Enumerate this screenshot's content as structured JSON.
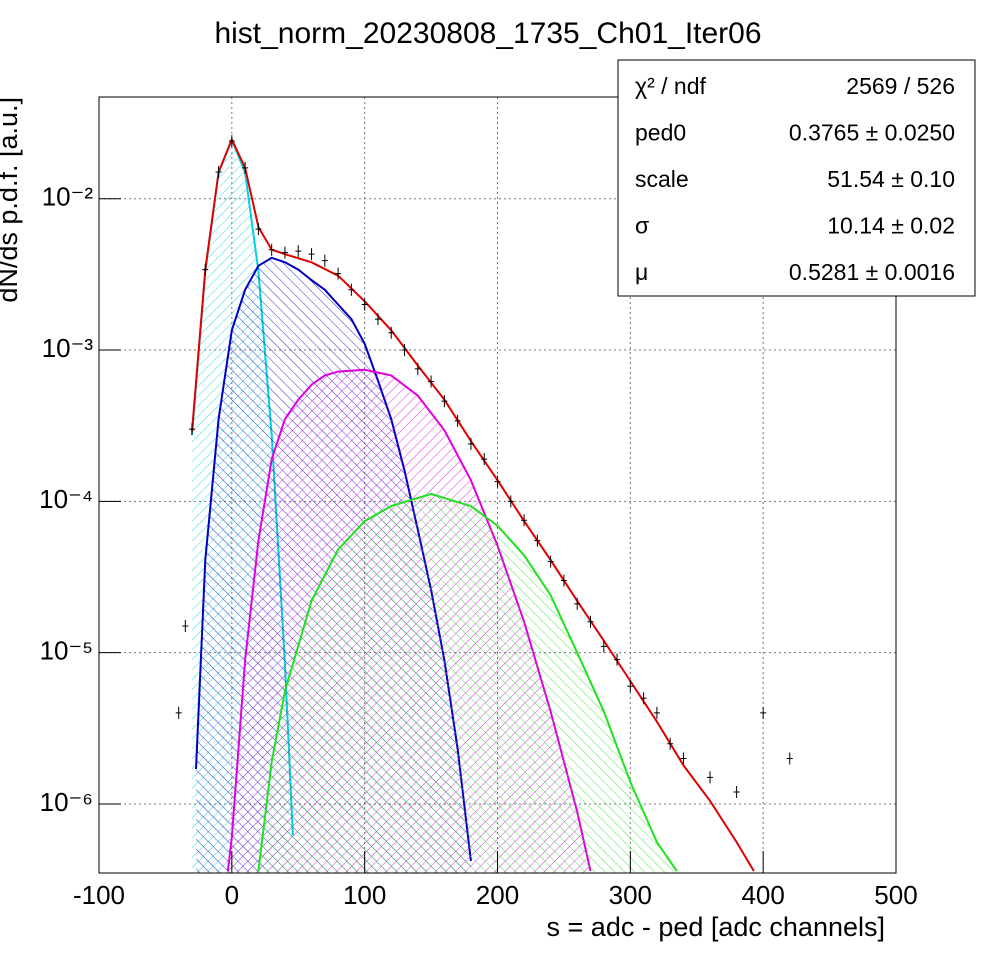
{
  "chart_data": {
    "type": "line",
    "title": "hist_norm_20230808_1735_Ch01_Iter06",
    "x_label": "s = adc - ped [adc channels]",
    "y_label": "dN/ds p.d.f. [a.u.]",
    "xlim": [
      -100,
      500
    ],
    "xticks": [
      -100,
      0,
      100,
      200,
      300,
      400,
      500
    ],
    "ylim": [
      3.5e-07,
      0.047
    ],
    "yticks": [
      {
        "value": 1e-06,
        "label": "10⁻⁶"
      },
      {
        "value": 1e-05,
        "label": "10⁻⁵"
      },
      {
        "value": 0.0001,
        "label": "10⁻⁴"
      },
      {
        "value": 0.001,
        "label": "10⁻³"
      },
      {
        "value": 0.01,
        "label": "10⁻²"
      }
    ],
    "log_y": true,
    "grid": true,
    "series": [
      {
        "color": "#000000",
        "marker": "cross",
        "x": [
          -40,
          -35,
          -30,
          -20,
          -10,
          0,
          10,
          20,
          30,
          40,
          50,
          60,
          70,
          80,
          90,
          100,
          110,
          120,
          130,
          140,
          150,
          160,
          170,
          180,
          190,
          200,
          210,
          220,
          230,
          240,
          250,
          260,
          270,
          280,
          290,
          300,
          310,
          320,
          330,
          340,
          360,
          380,
          400,
          420
        ],
        "values": [
          4e-06,
          1.5e-05,
          0.0003,
          0.0034,
          0.015,
          0.024,
          0.016,
          0.0063,
          0.0046,
          0.0044,
          0.0045,
          0.0043,
          0.0039,
          0.0032,
          0.0025,
          0.002,
          0.0016,
          0.0013,
          0.001,
          0.00075,
          0.00062,
          0.00046,
          0.00034,
          0.00024,
          0.00019,
          0.000135,
          0.0001,
          7.5e-05,
          5.5e-05,
          4e-05,
          3e-05,
          2.1e-05,
          1.6e-05,
          1.1e-05,
          9e-06,
          6e-06,
          5e-06,
          4e-06,
          2.5e-06,
          2e-06,
          1.5e-06,
          1.2e-06,
          4e-06,
          2e-06
        ]
      },
      {
        "color": "#00d0e0",
        "hatch": true,
        "x": [
          -30,
          -20,
          -10,
          0,
          10,
          20,
          30,
          40,
          46
        ],
        "values": [
          0.000274,
          0.00333,
          0.0149,
          0.0246,
          0.0149,
          0.00333,
          0.000274,
          8.25e-06,
          6.2e-07
        ]
      },
      {
        "color": "#0000c0",
        "hatch": true,
        "x": [
          -27,
          -20,
          -10,
          0,
          10,
          20,
          30,
          40,
          50,
          60,
          70,
          80,
          90,
          100,
          110,
          120,
          130,
          140,
          150,
          160,
          170,
          180
        ],
        "values": [
          1.7e-06,
          4.1e-05,
          0.00035,
          0.00135,
          0.0025,
          0.0036,
          0.00407,
          0.0038,
          0.0034,
          0.0029,
          0.0025,
          0.002,
          0.0016,
          0.0011,
          0.00063,
          0.00035,
          0.00016,
          6.5e-05,
          2.6e-05,
          8.9e-06,
          2.3e-06,
          4.2e-07
        ]
      },
      {
        "color": "#e000e0",
        "hatch": true,
        "x": [
          -3,
          0,
          10,
          20,
          30,
          40,
          50,
          60,
          70,
          80,
          100,
          120,
          140,
          160,
          180,
          200,
          220,
          240,
          260,
          270
        ],
        "values": [
          3.6e-07,
          6e-07,
          8.9e-06,
          5.5e-05,
          0.00019,
          0.00035,
          0.00047,
          0.00059,
          0.00068,
          0.00072,
          0.00074,
          0.00068,
          0.0005,
          0.000295,
          0.000138,
          5.1e-05,
          1.6e-05,
          4.1e-06,
          8.9e-07,
          3.6e-07
        ]
      },
      {
        "color": "#20e020",
        "hatch": true,
        "x": [
          20,
          30,
          40,
          60,
          80,
          100,
          120,
          150,
          180,
          200,
          220,
          240,
          260,
          280,
          300,
          320,
          335
        ],
        "values": [
          3.6e-07,
          1.9e-06,
          5.6e-06,
          2.2e-05,
          4.8e-05,
          7.4e-05,
          9.3e-05,
          0.000112,
          9.3e-05,
          6.9e-05,
          4.4e-05,
          2.4e-05,
          1e-05,
          4.1e-06,
          1.4e-06,
          5.6e-07,
          3.6e-07
        ]
      },
      {
        "color": "#e00000",
        "x": [
          -30,
          -20,
          -10,
          0,
          10,
          20,
          30,
          40,
          60,
          80,
          100,
          120,
          140,
          160,
          180,
          200,
          220,
          240,
          260,
          280,
          300,
          320,
          340,
          360,
          380,
          393
        ],
        "values": [
          0.00029,
          0.0034,
          0.015,
          0.0246,
          0.016,
          0.0065,
          0.0046,
          0.0043,
          0.0038,
          0.0031,
          0.0021,
          0.00135,
          0.00079,
          0.00047,
          0.00025,
          0.000138,
          7.4e-05,
          4.1e-05,
          2.2e-05,
          1.2e-05,
          6.5e-06,
          3.5e-06,
          1.8e-06,
          1.05e-06,
          5.6e-07,
          3.6e-07
        ]
      }
    ],
    "stats": [
      {
        "name": "χ² / ndf",
        "value": "2569 / 526"
      },
      {
        "name": "ped0",
        "value": "0.3765 ± 0.0250"
      },
      {
        "name": "scale",
        "value": "51.54 ± 0.10"
      },
      {
        "name": "σ",
        "value": "10.14 ± 0.02"
      },
      {
        "name": "μ",
        "value": "0.5281 ± 0.0016"
      }
    ]
  }
}
